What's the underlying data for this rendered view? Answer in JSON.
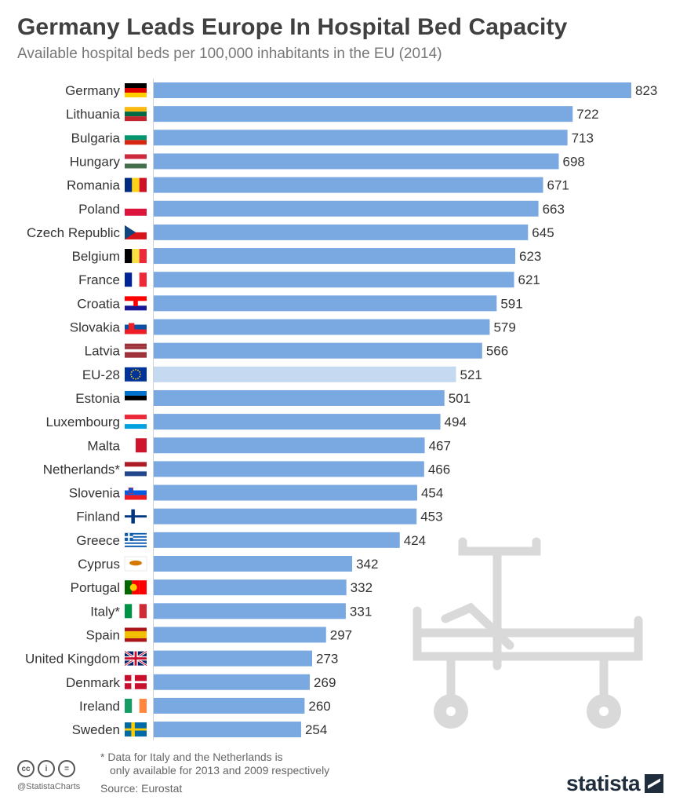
{
  "header": {
    "title": "Germany Leads Europe In Hospital Bed Capacity",
    "subtitle": "Available hospital beds per 100,000 inhabitants in the EU (2014)"
  },
  "footer": {
    "note_line1": "* Data for Italy and the Netherlands is",
    "note_line2": "only available for 2013 and 2009 respectively",
    "source": "Source: Eurostat",
    "handle": "@StatistaCharts",
    "brand": "statista"
  },
  "colors": {
    "bar": "#7aa8e0",
    "bar_highlight": "#c5d9f1",
    "illustration": "#d9d9d9"
  },
  "chart_data": {
    "type": "bar",
    "orientation": "horizontal",
    "categories": [
      "Germany",
      "Lithuania",
      "Bulgaria",
      "Hungary",
      "Romania",
      "Poland",
      "Czech Republic",
      "Belgium",
      "France",
      "Croatia",
      "Slovakia",
      "Latvia",
      "EU-28",
      "Estonia",
      "Luxembourg",
      "Malta",
      "Netherlands*",
      "Slovenia",
      "Finland",
      "Greece",
      "Cyprus",
      "Portugal",
      "Italy*",
      "Spain",
      "United Kingdom",
      "Denmark",
      "Ireland",
      "Sweden"
    ],
    "values": [
      823,
      722,
      713,
      698,
      671,
      663,
      645,
      623,
      621,
      591,
      579,
      566,
      521,
      501,
      494,
      467,
      466,
      454,
      453,
      424,
      342,
      332,
      331,
      297,
      273,
      269,
      260,
      254
    ],
    "highlight_category": "EU-28",
    "flags": [
      "flag-germany",
      "flag-lithuania",
      "flag-bulgaria",
      "flag-hungary",
      "flag-romania",
      "flag-poland",
      "flag-czech-republic",
      "flag-belgium",
      "flag-france",
      "flag-croatia",
      "flag-slovakia",
      "flag-latvia",
      "flag-eu",
      "flag-estonia",
      "flag-luxembourg",
      "flag-malta",
      "flag-netherlands",
      "flag-slovenia",
      "flag-finland",
      "flag-greece",
      "flag-cyprus",
      "flag-portugal",
      "flag-italy",
      "flag-spain",
      "flag-united-kingdom",
      "flag-denmark",
      "flag-ireland",
      "flag-sweden"
    ],
    "xlim": [
      0,
      823
    ],
    "grid": false,
    "legend": "none",
    "xlabel": "",
    "ylabel": ""
  }
}
